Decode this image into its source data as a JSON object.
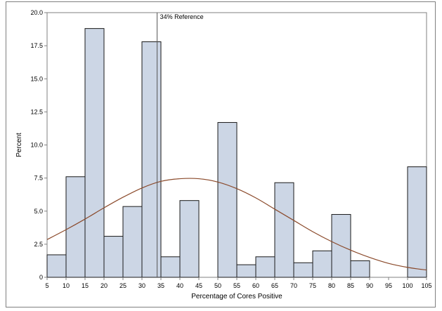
{
  "chart_data": {
    "type": "bar",
    "xlabel": "Percentage of  Cores Positive",
    "ylabel": "Percent",
    "xlim": [
      5,
      105
    ],
    "ylim": [
      0,
      20
    ],
    "x_ticks": [
      5,
      10,
      15,
      20,
      25,
      30,
      35,
      40,
      45,
      50,
      55,
      60,
      65,
      70,
      75,
      80,
      85,
      90,
      95,
      100,
      105
    ],
    "y_ticks": [
      "0",
      "2.5",
      "5.0",
      "7.5",
      "10.0",
      "12.5",
      "15.0",
      "17.5",
      "20.0"
    ],
    "bar_width": 5,
    "bars": [
      {
        "start": 5,
        "value": 1.7
      },
      {
        "start": 10,
        "value": 7.6
      },
      {
        "start": 15,
        "value": 18.8
      },
      {
        "start": 20,
        "value": 3.1
      },
      {
        "start": 25,
        "value": 5.35
      },
      {
        "start": 30,
        "value": 17.8
      },
      {
        "start": 35,
        "value": 1.55
      },
      {
        "start": 40,
        "value": 5.8
      },
      {
        "start": 50,
        "value": 11.7
      },
      {
        "start": 55,
        "value": 0.95
      },
      {
        "start": 60,
        "value": 1.55
      },
      {
        "start": 65,
        "value": 7.15
      },
      {
        "start": 70,
        "value": 1.1
      },
      {
        "start": 75,
        "value": 2.0
      },
      {
        "start": 80,
        "value": 4.75
      },
      {
        "start": 85,
        "value": 1.25
      },
      {
        "start": 100,
        "value": 8.35
      }
    ],
    "normal_curve": {
      "x": [
        5,
        10,
        15,
        20,
        25,
        30,
        35,
        40,
        45,
        50,
        55,
        60,
        65,
        70,
        75,
        80,
        85,
        90,
        95,
        100,
        105
      ],
      "y": [
        2.85,
        3.6,
        4.4,
        5.25,
        6.05,
        6.75,
        7.25,
        7.45,
        7.45,
        7.2,
        6.7,
        6.0,
        5.15,
        4.3,
        3.45,
        2.7,
        2.05,
        1.5,
        1.05,
        0.75,
        0.55
      ]
    },
    "reference_line": {
      "x": 34,
      "label": "34% Reference"
    },
    "colors": {
      "bar_fill": "#ccd6e5",
      "bar_stroke": "#1a1a1a",
      "curve": "#8b4a2b",
      "reference_line": "#555555",
      "axis": "#808080"
    },
    "grid": false
  }
}
